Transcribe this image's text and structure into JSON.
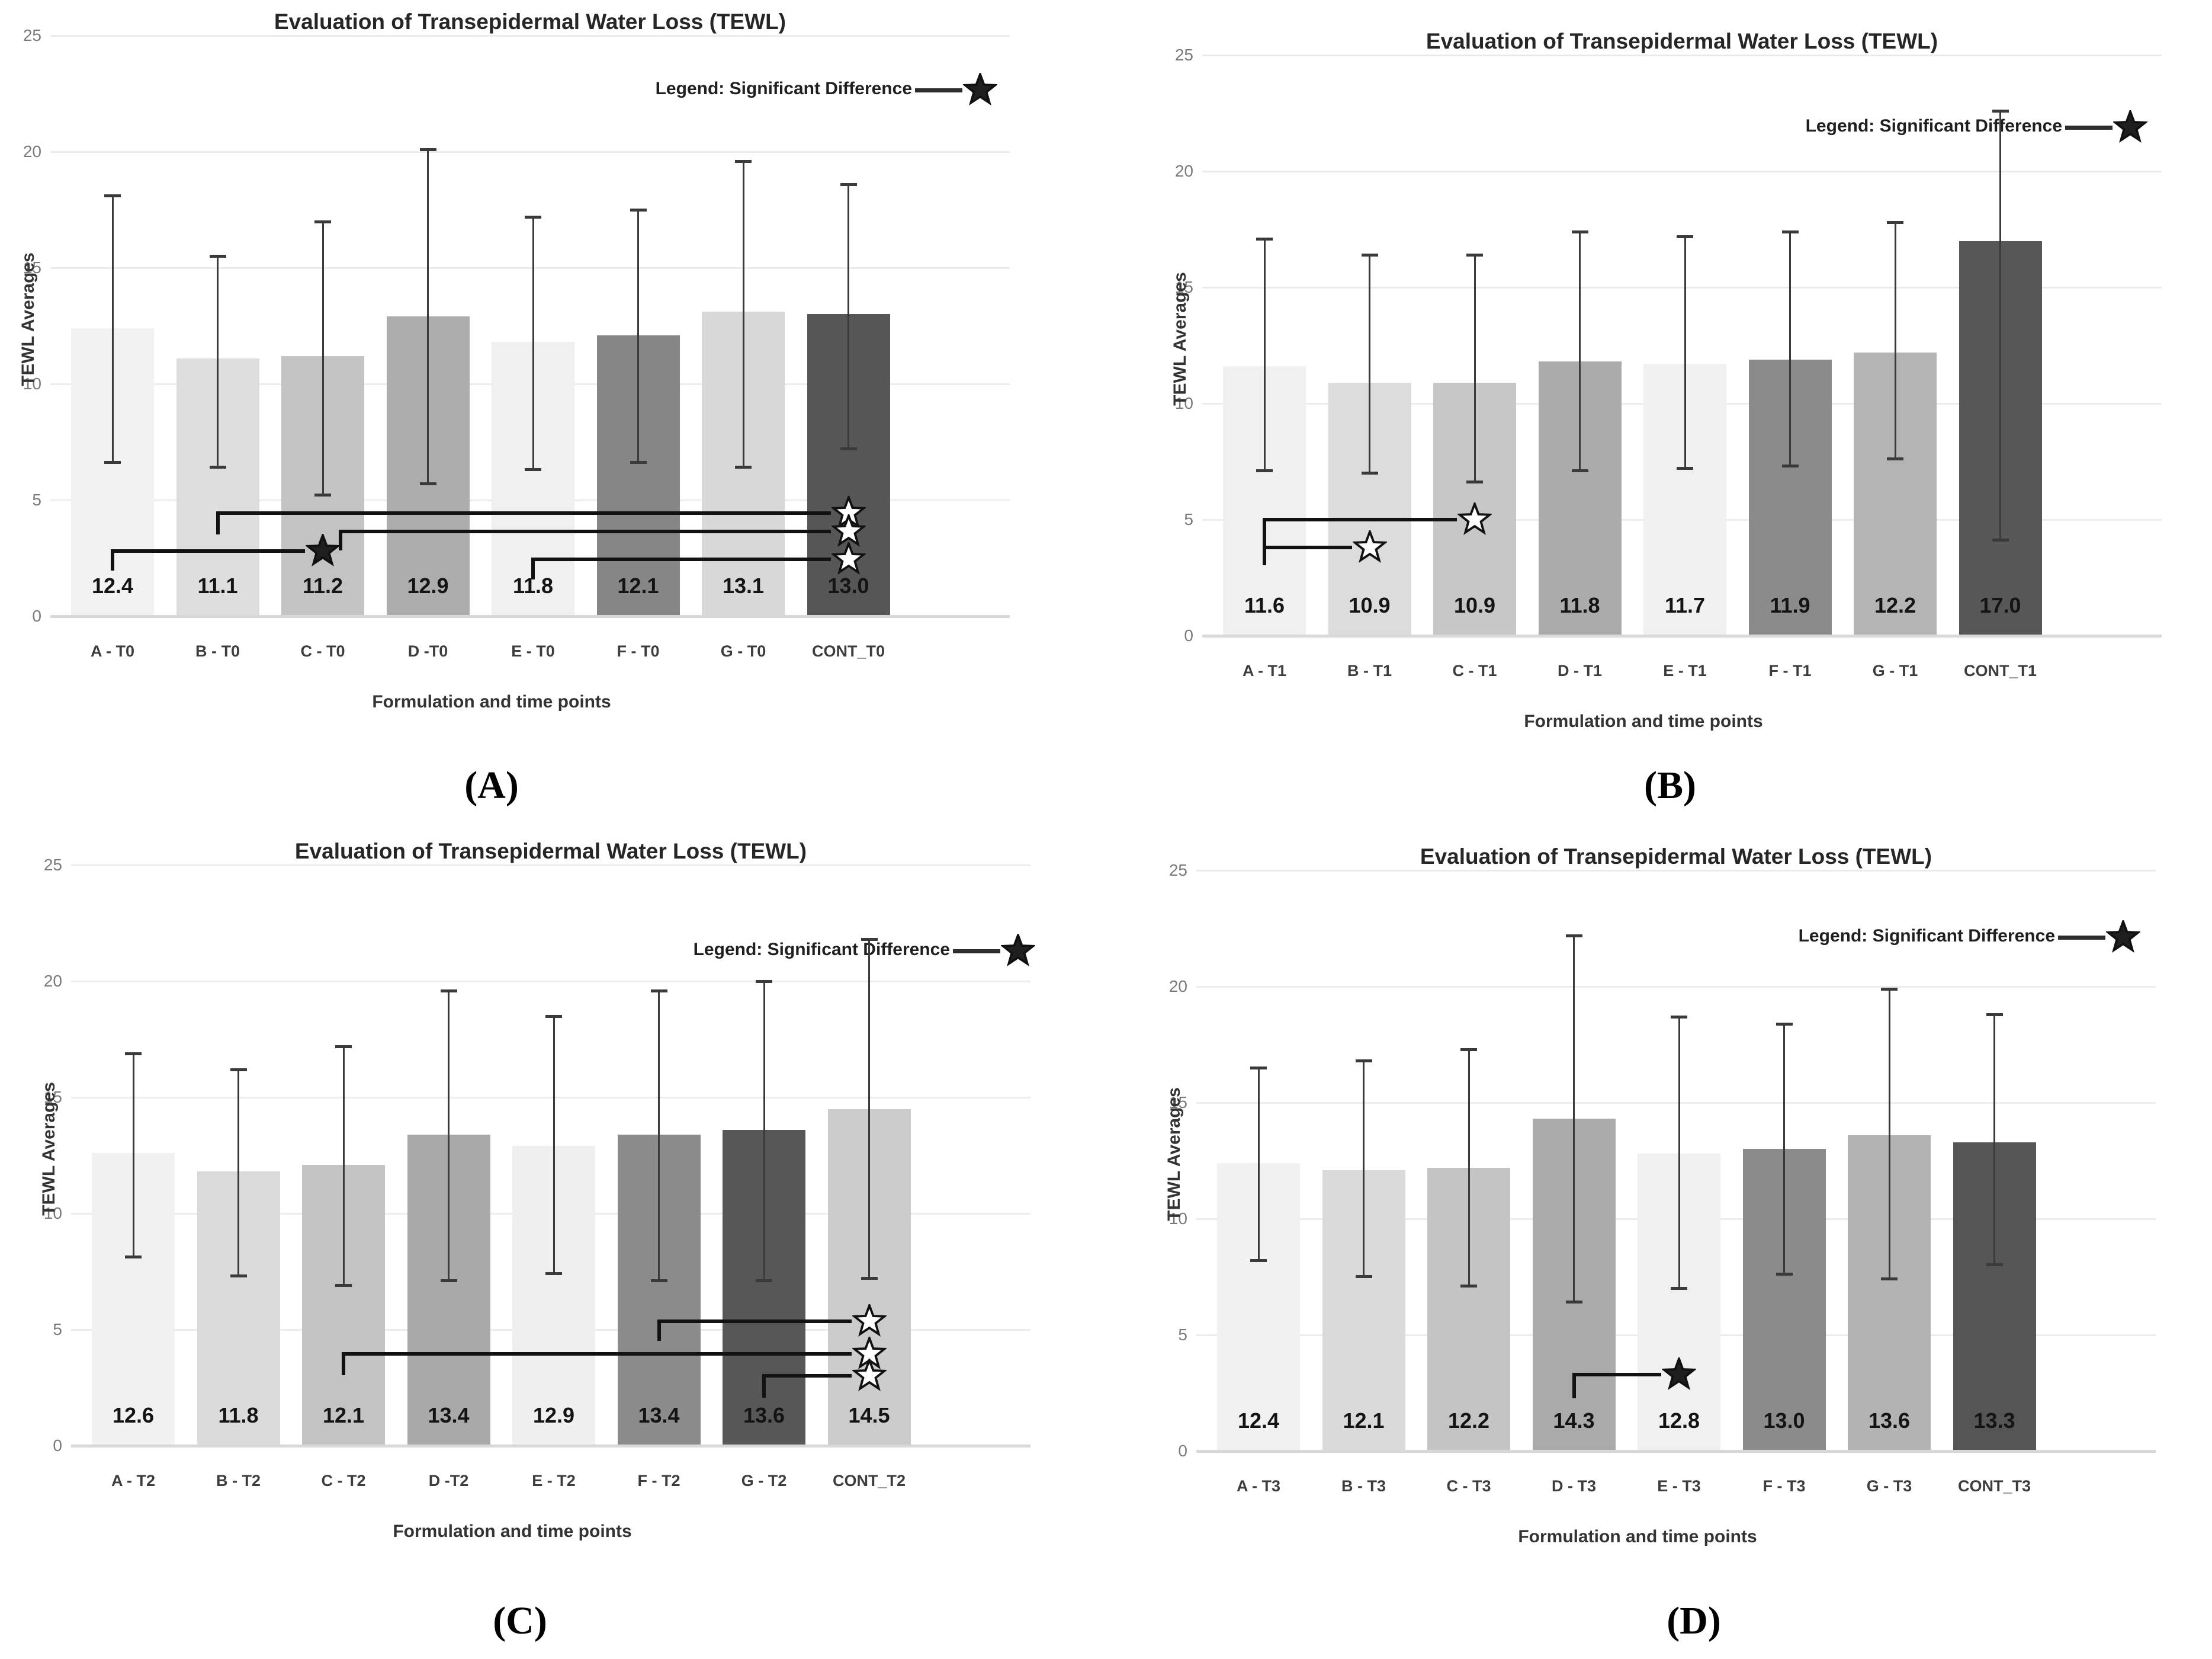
{
  "captions": [
    "(A)",
    "(B)",
    "(C)",
    "(D)"
  ],
  "style": {
    "grid_color": "#ececec",
    "baseline_color": "#d8d8d8",
    "error_color": "#3a3a3a",
    "sig_line_color": "#121212",
    "legend_star_color": "#333333"
  },
  "chart_data": [
    {
      "type": "bar",
      "panel": "A",
      "title": "Evaluation of Transepidermal Water Loss (TEWL)",
      "legend_label": "Legend: Significant Difference",
      "ylabel": "TEWL Averages",
      "xlabel": "Formulation and time points",
      "ylim": [
        0,
        25
      ],
      "yticks": [
        0,
        5,
        10,
        15,
        20,
        25
      ],
      "categories": [
        "A - T0",
        "B - T0",
        "C - T0",
        "D -T0",
        "E - T0",
        "F - T0",
        "G - T0",
        "CONT_T0"
      ],
      "values": [
        12.4,
        11.1,
        11.2,
        12.9,
        11.8,
        12.1,
        13.1,
        13.0
      ],
      "value_labels": [
        "12.4",
        "11.1",
        "11.2",
        "12.9",
        "11.8",
        "12.1",
        "13.1",
        "13.0"
      ],
      "error_low": [
        6.6,
        6.4,
        5.2,
        5.7,
        6.3,
        6.6,
        6.4,
        7.2
      ],
      "error_high": [
        18.1,
        15.5,
        17.0,
        20.1,
        17.2,
        17.5,
        19.6,
        18.6
      ],
      "bar_colors": [
        "#f2f2f2",
        "#dedede",
        "#c3c3c3",
        "#adadad",
        "#f0f0f0",
        "#868686",
        "#d8d8d8",
        "#565656"
      ],
      "significance": [
        {
          "from": 1,
          "to": 7,
          "y": 4.45,
          "drop": 1.0,
          "star": "outline"
        },
        {
          "from": 2,
          "to": 7,
          "y": 3.65,
          "drop": 0.9,
          "star": "outline",
          "from_dx": 30
        },
        {
          "from": 0,
          "to": 2,
          "y": 2.8,
          "drop": 0.9,
          "star": "filled"
        },
        {
          "from": 4,
          "to": 7,
          "y": 2.45,
          "drop": 0.95,
          "star": "outline"
        }
      ]
    },
    {
      "type": "bar",
      "panel": "B",
      "title": "Evaluation of Transepidermal Water Loss (TEWL)",
      "legend_label": "Legend: Significant Difference",
      "ylabel": "TEWL Averages",
      "xlabel": "Formulation and time points",
      "ylim": [
        0,
        25
      ],
      "yticks": [
        0,
        5,
        10,
        15,
        20,
        25
      ],
      "categories": [
        "A - T1",
        "B - T1",
        "C - T1",
        "D - T1",
        "E - T1",
        "F - T1",
        "G - T1",
        "CONT_T1"
      ],
      "values": [
        11.6,
        10.9,
        10.9,
        11.8,
        11.7,
        11.9,
        12.2,
        17.0
      ],
      "value_labels": [
        "11.6",
        "10.9",
        "10.9",
        "11.8",
        "11.7",
        "11.9",
        "12.2",
        "17.0"
      ],
      "error_low": [
        7.1,
        7.0,
        6.6,
        7.1,
        7.2,
        7.3,
        7.6,
        4.1
      ],
      "error_high": [
        17.1,
        16.4,
        16.4,
        17.4,
        17.2,
        17.4,
        17.8,
        22.6
      ],
      "bar_colors": [
        "#f0f0f0",
        "#dcdcdc",
        "#c7c7c7",
        "#ababab",
        "#f0f0f0",
        "#8b8b8b",
        "#b4b4b4",
        "#575757"
      ],
      "significance": [
        {
          "from": 0,
          "to": 2,
          "y": 5.0,
          "drop": 2.05,
          "star": "outline"
        },
        {
          "from": 0,
          "to": 1,
          "y": 3.8,
          "drop": 0,
          "star": "outline"
        }
      ]
    },
    {
      "type": "bar",
      "panel": "C",
      "title": "Evaluation of Transepidermal Water Loss (TEWL)",
      "legend_label": "Legend: Significant Difference",
      "ylabel": "TEWL Averages",
      "xlabel": "Formulation and time points",
      "ylim": [
        0,
        25
      ],
      "yticks": [
        0,
        5,
        10,
        15,
        20,
        25
      ],
      "categories": [
        "A - T2",
        "B - T2",
        "C - T2",
        "D -T2",
        "E - T2",
        "F - T2",
        "G - T2",
        "CONT_T2"
      ],
      "values": [
        12.6,
        11.8,
        12.1,
        13.4,
        12.9,
        13.4,
        13.6,
        14.5
      ],
      "value_labels": [
        "12.6",
        "11.8",
        "12.1",
        "13.4",
        "12.9",
        "13.4",
        "13.6",
        "14.5"
      ],
      "error_low": [
        8.1,
        7.3,
        6.9,
        7.1,
        7.4,
        7.1,
        7.1,
        7.2
      ],
      "error_high": [
        16.9,
        16.2,
        17.2,
        19.6,
        18.5,
        19.6,
        20.0,
        21.8
      ],
      "bar_colors": [
        "#f1f1f1",
        "#dbdbdb",
        "#c3c3c3",
        "#a9a9a9",
        "#efefef",
        "#8b8b8b",
        "#575757",
        "#cccccc"
      ],
      "significance": [
        {
          "from": 5,
          "to": 7,
          "y": 5.35,
          "drop": 0.9,
          "star": "outline"
        },
        {
          "from": 2,
          "to": 7,
          "y": 3.95,
          "drop": 1.0,
          "star": "outline"
        },
        {
          "from": 6,
          "to": 7,
          "y": 3.0,
          "drop": 1.0,
          "star": "outline"
        }
      ]
    },
    {
      "type": "bar",
      "panel": "D",
      "title": "Evaluation of Transepidermal Water Loss (TEWL)",
      "legend_label": "Legend: Significant Difference",
      "ylabel": "TEWL Averages",
      "xlabel": "Formulation and time points",
      "ylim": [
        0,
        25
      ],
      "yticks": [
        0,
        5,
        10,
        15,
        20,
        25
      ],
      "categories": [
        "A - T3",
        "B - T3",
        "C - T3",
        "D - T3",
        "E - T3",
        "F - T3",
        "G - T3",
        "CONT_T3"
      ],
      "values": [
        12.4,
        12.1,
        12.2,
        14.3,
        12.8,
        13.0,
        13.6,
        13.3
      ],
      "value_labels": [
        "12.4",
        "12.1",
        "12.2",
        "14.3",
        "12.8",
        "13.0",
        "13.6",
        "13.3"
      ],
      "error_low": [
        8.2,
        7.5,
        7.1,
        6.4,
        7.0,
        7.6,
        7.4,
        8.0
      ],
      "error_high": [
        16.5,
        16.8,
        17.3,
        22.2,
        18.7,
        18.4,
        19.9,
        18.8
      ],
      "bar_colors": [
        "#f1f1f1",
        "#dadada",
        "#c4c4c4",
        "#aaaaaa",
        "#f0f0f0",
        "#8b8b8b",
        "#b3b3b3",
        "#555555"
      ],
      "significance": [
        {
          "from": 3,
          "to": 4,
          "y": 3.3,
          "drop": 1.1,
          "star": "filled"
        }
      ]
    }
  ]
}
